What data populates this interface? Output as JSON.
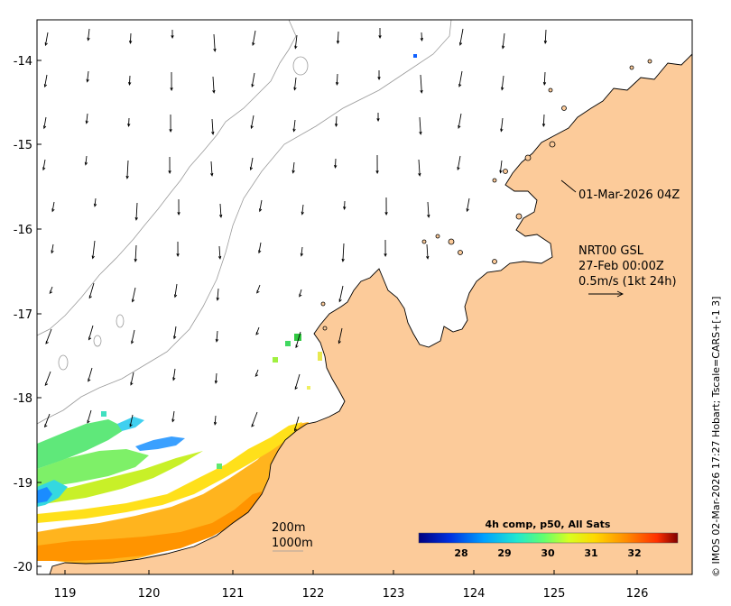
{
  "map": {
    "lon_ticks": [
      "119",
      "120",
      "121",
      "122",
      "123",
      "124",
      "125",
      "126"
    ],
    "lat_ticks": [
      "-14",
      "-15",
      "-16",
      "-17",
      "-18",
      "-19",
      "-20"
    ],
    "colors": {
      "land": "#fccb9a",
      "ocean": "#ffffff",
      "coast": "#000000",
      "isobath": "#9a9a9a"
    }
  },
  "annotations": {
    "timestamp_label": "01-Mar-2026 04Z",
    "current_source": "NRT00 GSL",
    "current_time": "27-Feb 00:00Z",
    "current_scale": "0.5m/s (1kt 24h)"
  },
  "depth_legend": {
    "line1": "200m",
    "line2": "1000m"
  },
  "colorbar": {
    "title": "4h comp, p50, All Sats",
    "ticks": [
      "28",
      "29",
      "30",
      "31",
      "32"
    ],
    "colors": [
      "#00007f",
      "#0050ff",
      "#00c8ff",
      "#40ffb0",
      "#a0ff40",
      "#ffe000",
      "#ff9000",
      "#ff3000",
      "#800000"
    ]
  },
  "credit": "© IMOS 02-Mar-2026 17:27 Hobart; Tscale=CARS+[-1 3]"
}
